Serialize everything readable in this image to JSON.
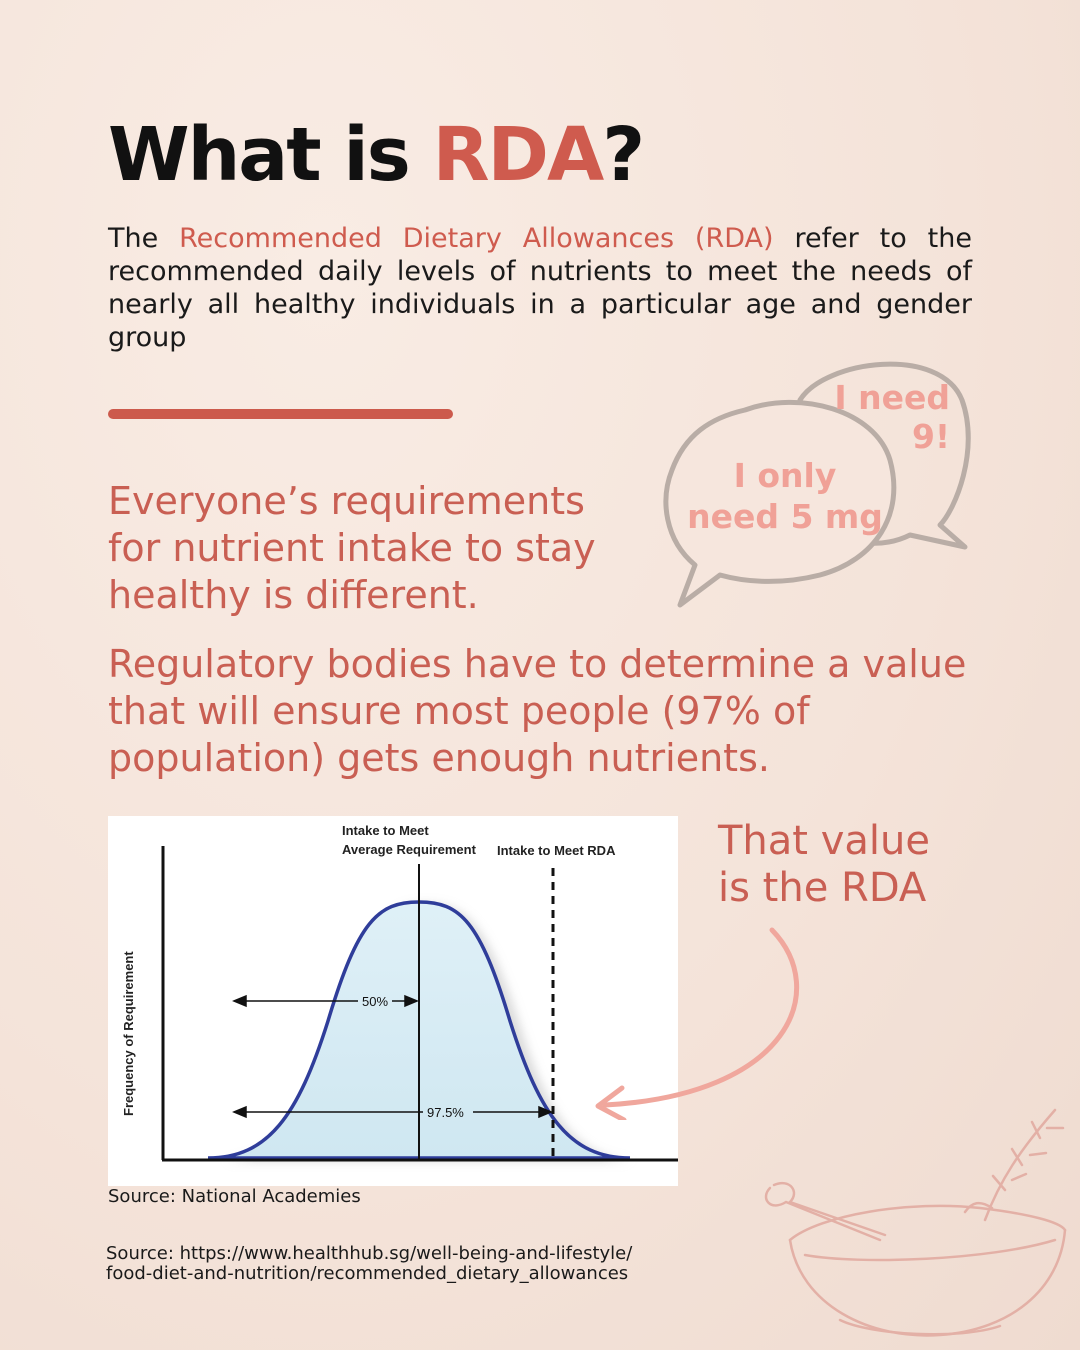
{
  "title": {
    "prefix": "What is ",
    "accent": "RDA",
    "suffix": "?"
  },
  "intro": {
    "lead": "The ",
    "highlight": "Recommended Dietary Allowances (RDA)",
    "rest": " refer to the recommended daily levels of nutrients to meet the needs of nearly all healthy individuals in a particular age and gender group"
  },
  "paragraph1": "Everyone’s requirements for nutrient intake to stay healthy is different.",
  "paragraph2": "Regulatory bodies have to determine a value that will ensure most people (97% of population) gets enough nutrients.",
  "bubbles": {
    "back": [
      "I need",
      "9!"
    ],
    "front": [
      "I only",
      "need 5 mg"
    ]
  },
  "chart": {
    "label_average_1": "Intake to Meet",
    "label_average_2": "Average Requirement",
    "label_rda": "Intake to Meet RDA",
    "y_axis": "Frequency of Requirement",
    "arrow_50": "50%",
    "arrow_975": "97.5%",
    "source": "Source: National Academies"
  },
  "callout": [
    "That value",
    "is the RDA"
  ],
  "source": [
    "Source: https://www.healthhub.sg/well-being-and-lifestyle/",
    "food-diet-and-nutrition/recommended_dietary_allowances"
  ],
  "colors": {
    "accent": "#cf5b4e",
    "text_red": "#c95f53",
    "bubble_text": "#f0a197",
    "background": "#f6e6dd"
  }
}
